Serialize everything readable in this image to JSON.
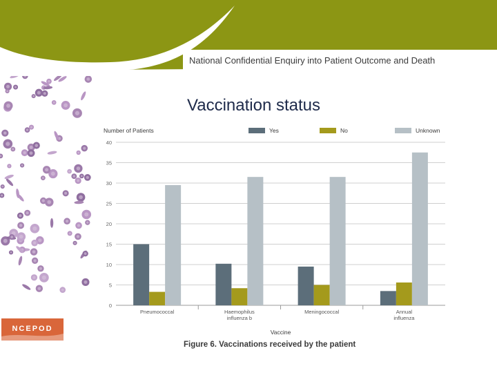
{
  "header": {
    "org_name": "National Confidential Enquiry into Patient Outcome and Death",
    "banner_color": "#8c9614"
  },
  "slide": {
    "title": "Vaccination status",
    "caption": "Figure 6. Vaccinations received by the patient"
  },
  "logo": {
    "text": "NCEPOD",
    "color": "#d9663a"
  },
  "chart_data": {
    "type": "bar",
    "title": "",
    "ylabel": "Number of Patients",
    "xlabel": "Vaccine",
    "ylim": [
      0,
      40
    ],
    "yticks": [
      0,
      5,
      10,
      15,
      20,
      25,
      30,
      35,
      40
    ],
    "grid": true,
    "legend_position": "top",
    "categories": [
      [
        "Pneumococcal"
      ],
      [
        "Haemophilus",
        "influenza b"
      ],
      [
        "Meningococcal"
      ],
      [
        "Annual",
        "influenza"
      ]
    ],
    "series": [
      {
        "name": "Yes",
        "color": "#5c6e7a",
        "values": [
          15,
          10.2,
          9.5,
          3.5
        ]
      },
      {
        "name": "No",
        "color": "#a49a1c",
        "values": [
          3.3,
          4.2,
          5,
          5.6
        ]
      },
      {
        "name": "Unknown",
        "color": "#b6c0c6",
        "values": [
          29.5,
          31.5,
          31.5,
          37.5
        ]
      }
    ]
  }
}
